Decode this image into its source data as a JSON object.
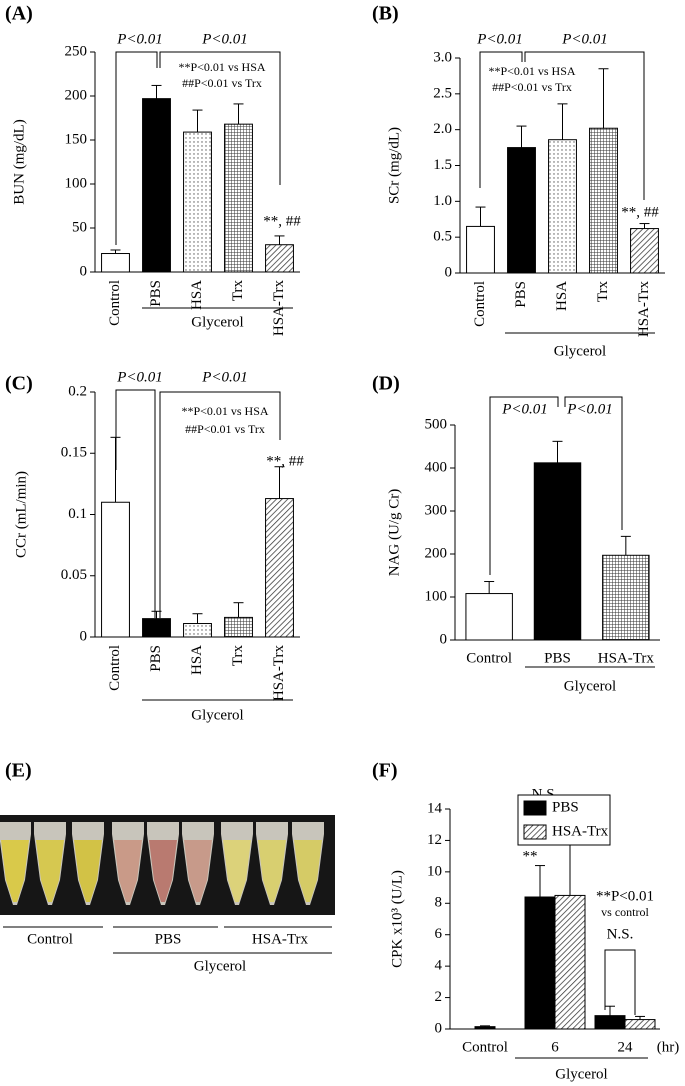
{
  "chart_data": [
    {
      "type": "bar",
      "title": "(A)",
      "ylabel": "BUN (mg/dL)",
      "categories": [
        "Control",
        "PBS",
        "HSA",
        "Trx",
        "HSA-Trx"
      ],
      "values": [
        21,
        197,
        159,
        168,
        31
      ],
      "errors": [
        4,
        15,
        25,
        23,
        10
      ],
      "fills": [
        "white",
        "black",
        "dots",
        "grid",
        "hatch"
      ],
      "ylim": [
        0,
        250
      ],
      "yticks": [
        0,
        50,
        100,
        150,
        200,
        250
      ],
      "group_label": "Glycerol",
      "annotations": [
        "P<0.01",
        "P<0.01",
        "**P<0.01 vs HSA",
        "##P<0.01 vs Trx",
        "**, ##"
      ]
    },
    {
      "type": "bar",
      "title": "(B)",
      "ylabel": "SCr (mg/dL)",
      "categories": [
        "Control",
        "PBS",
        "HSA",
        "Trx",
        "HSA-Trx"
      ],
      "values": [
        0.65,
        1.75,
        1.86,
        2.02,
        0.62
      ],
      "errors": [
        0.27,
        0.3,
        0.5,
        0.83,
        0.07
      ],
      "fills": [
        "white",
        "black",
        "dots",
        "grid",
        "hatch"
      ],
      "ylim": [
        0,
        3
      ],
      "yticks": [
        0,
        0.5,
        {
          "value": 1,
          "label": "1.0"
        },
        1.5,
        {
          "value": 2,
          "label": "2.0"
        },
        2.5,
        {
          "value": 3,
          "label": "3.0"
        }
      ],
      "group_label": "Glycerol",
      "annotations": [
        "P<0.01",
        "P<0.01",
        "**P<0.01 vs HSA",
        "##P<0.01 vs Trx",
        "**, ##"
      ]
    },
    {
      "type": "bar",
      "title": "(C)",
      "ylabel": "CCr (mL/min)",
      "categories": [
        "Control",
        "PBS",
        "HSA",
        "Trx",
        "HSA-Trx"
      ],
      "values": [
        0.11,
        0.015,
        0.011,
        0.016,
        0.113
      ],
      "errors": [
        0.053,
        0.006,
        0.008,
        0.012,
        0.026
      ],
      "fills": [
        "white",
        "black",
        "dots",
        "grid",
        "hatch"
      ],
      "ylim": [
        0,
        0.2
      ],
      "yticks": [
        0,
        0.05,
        0.1,
        0.15,
        0.2
      ],
      "group_label": "Glycerol",
      "annotations": [
        "P<0.01",
        "P<0.01",
        "**P<0.01 vs HSA",
        "##P<0.01 vs Trx",
        "**, ##"
      ]
    },
    {
      "type": "bar",
      "title": "(D)",
      "ylabel": "NAG (U/g Cr)",
      "categories": [
        "Control",
        "PBS",
        "HSA-Trx"
      ],
      "values": [
        108,
        412,
        197
      ],
      "errors": [
        28,
        50,
        44
      ],
      "fills": [
        "white",
        "black",
        "grid"
      ],
      "ylim": [
        0,
        500
      ],
      "yticks": [
        0,
        100,
        200,
        300,
        400,
        500
      ],
      "group_label": "Glycerol",
      "annotations": [
        "P<0.01",
        "P<0.01"
      ]
    },
    {
      "type": "grouped_bar",
      "title": "(F)",
      "ylabel": "CPK x10³ (U/L)",
      "categories": [
        "Control",
        "6",
        "24"
      ],
      "x_unit": "(hr)",
      "series": [
        {
          "name": "PBS",
          "color": "black",
          "values": [
            0.15,
            8.4,
            0.85
          ],
          "errors": [
            0.05,
            2.0,
            0.6
          ]
        },
        {
          "name": "HSA-Trx",
          "color": "hatch",
          "values": [
            null,
            8.5,
            0.6
          ],
          "errors": [
            null,
            4.3,
            0.2
          ]
        }
      ],
      "ylim": [
        0,
        14
      ],
      "yticks": [
        0,
        2,
        4,
        6,
        8,
        10,
        12,
        14
      ],
      "group_label": "Glycerol",
      "annotations": [
        "N.S.",
        "**",
        "**",
        "N.S.",
        "**P<0.01",
        "vs control"
      ]
    }
  ],
  "photo_panel": {
    "label": "(E)",
    "groups": [
      "Control",
      "PBS",
      "HSA-Trx"
    ],
    "group_label": "Glycerol"
  }
}
